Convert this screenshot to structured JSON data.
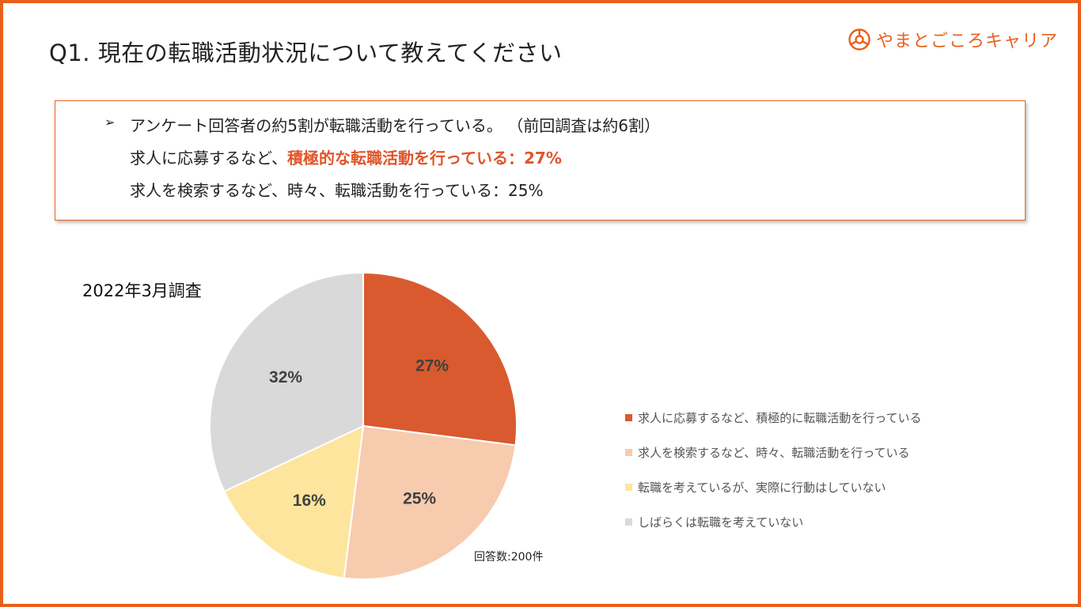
{
  "header": {
    "title": "Q1. 現在の転職活動状況について教えてください",
    "logo_text": "やまとごころキャリア"
  },
  "summary": {
    "bullet": "➢",
    "line1": "アンケート回答者の約5割が転職活動を行っている。 （前回調査は約6割）",
    "line2_prefix": "求人に応募するなど、",
    "line2_highlight": "積極的な転職活動を行っている：27%",
    "line3": "求人を検索するなど、時々、転職活動を行っている：25%"
  },
  "survey_label": "2022年3月調査",
  "response_note": "回答数:200件",
  "colors": {
    "accent": "#e8601c",
    "highlight": "#e1542a"
  },
  "chart_data": {
    "type": "pie",
    "series": [
      {
        "name": "求人に応募するなど、積極的に転職活動を行っている",
        "value": 27,
        "label": "27%",
        "color": "#d95a2f"
      },
      {
        "name": "求人を検索するなど、時々、転職活動を行っている",
        "value": 25,
        "label": "25%",
        "color": "#f7cbae"
      },
      {
        "name": "転職を考えているが、実際に行動はしていない",
        "value": 16,
        "label": "16%",
        "color": "#fee59d"
      },
      {
        "name": "しばらくは転職を考えていない",
        "value": 32,
        "label": "32%",
        "color": "#d9d9d9"
      }
    ],
    "legend_position": "right"
  }
}
